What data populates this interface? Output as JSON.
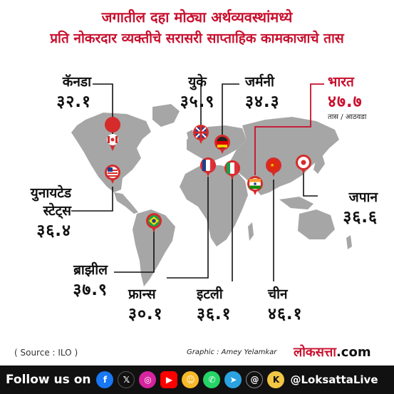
{
  "title": {
    "line1": "जगातील दहा मोठ्या अर्थव्यवस्थांमध्ये",
    "line2": "प्रति नोकरदार व्यक्तीचे सरासरी साप्ताहिक कामकाजाचे तास"
  },
  "countries": {
    "canada": {
      "name": "कॅनडा",
      "value": "३२.१"
    },
    "uk": {
      "name": "युके",
      "value": "३५.९"
    },
    "germany": {
      "name": "जर्मनी",
      "value": "३४.३"
    },
    "india": {
      "name": "भारत",
      "value": "४७.७",
      "unit": "तास / आठवडा"
    },
    "usa": {
      "name_line1": "युनायटेड",
      "name_line2": "स्टेट्स",
      "value": "३६.४"
    },
    "japan": {
      "name": "जपान",
      "value": "३६.६"
    },
    "brazil": {
      "name": "ब्राझील",
      "value": "३७.९"
    },
    "france": {
      "name": "फ्रान्स",
      "value": "३०.१"
    },
    "italy": {
      "name": "इटली",
      "value": "३६.१"
    },
    "china": {
      "name": "चीन",
      "value": "४६.१"
    }
  },
  "footer_info": {
    "source": "( Source : ILO )",
    "graphic": "Graphic : Amey Yelamkar",
    "brand_red": "लोकसत्ता",
    "brand_black": ".com"
  },
  "social": {
    "follow_label": "Follow us on",
    "handle": "@LoksattaLive",
    "icons": [
      "facebook-icon",
      "x-icon",
      "instagram-icon",
      "youtube-icon",
      "sharechat-icon",
      "whatsapp-icon",
      "telegram-icon",
      "threads-icon",
      "koo-icon"
    ]
  },
  "colors": {
    "accent": "#c8102e",
    "map": "#a6a6a6",
    "pin": "#d62b2b",
    "footer_bg": "#111111"
  }
}
